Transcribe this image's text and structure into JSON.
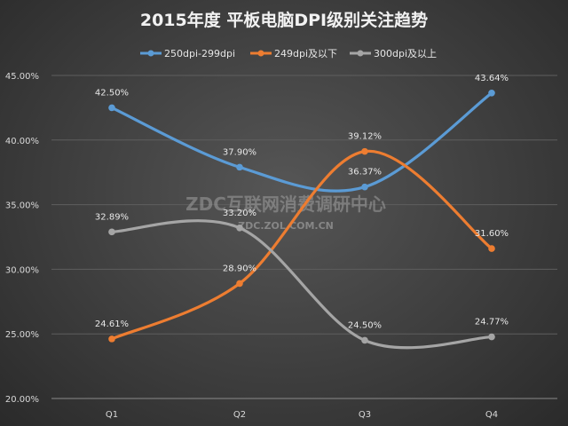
{
  "chart_data": {
    "type": "line",
    "title": "2015年度 平板电脑DPI级别关注趋势",
    "categories": [
      "Q1",
      "Q2",
      "Q3",
      "Q4"
    ],
    "yticks": [
      "20.00%",
      "25.00%",
      "30.00%",
      "35.00%",
      "40.00%",
      "45.00%"
    ],
    "ylim": [
      20,
      45
    ],
    "smooth": true,
    "legend_position": "top",
    "series": [
      {
        "name": "250dpi-299dpi",
        "color": "#5b9bd5",
        "values": [
          42.5,
          37.9,
          36.37,
          43.64
        ],
        "labels": [
          "42.50%",
          "37.90%",
          "36.37%",
          "43.64%"
        ]
      },
      {
        "name": "249dpi及以下",
        "color": "#ed7d31",
        "values": [
          24.61,
          28.9,
          39.12,
          31.6
        ],
        "labels": [
          "24.61%",
          "28.90%",
          "39.12%",
          "31.60%"
        ]
      },
      {
        "name": "300dpi及以上",
        "color": "#a5a5a5",
        "values": [
          32.89,
          33.2,
          24.5,
          24.77
        ],
        "labels": [
          "32.89%",
          "33.20%",
          "24.50%",
          "24.77%"
        ]
      }
    ]
  },
  "watermark": {
    "line1": "ZDC互联网消费调研中心",
    "line2": "ZDC.ZOL.COM.CN"
  }
}
